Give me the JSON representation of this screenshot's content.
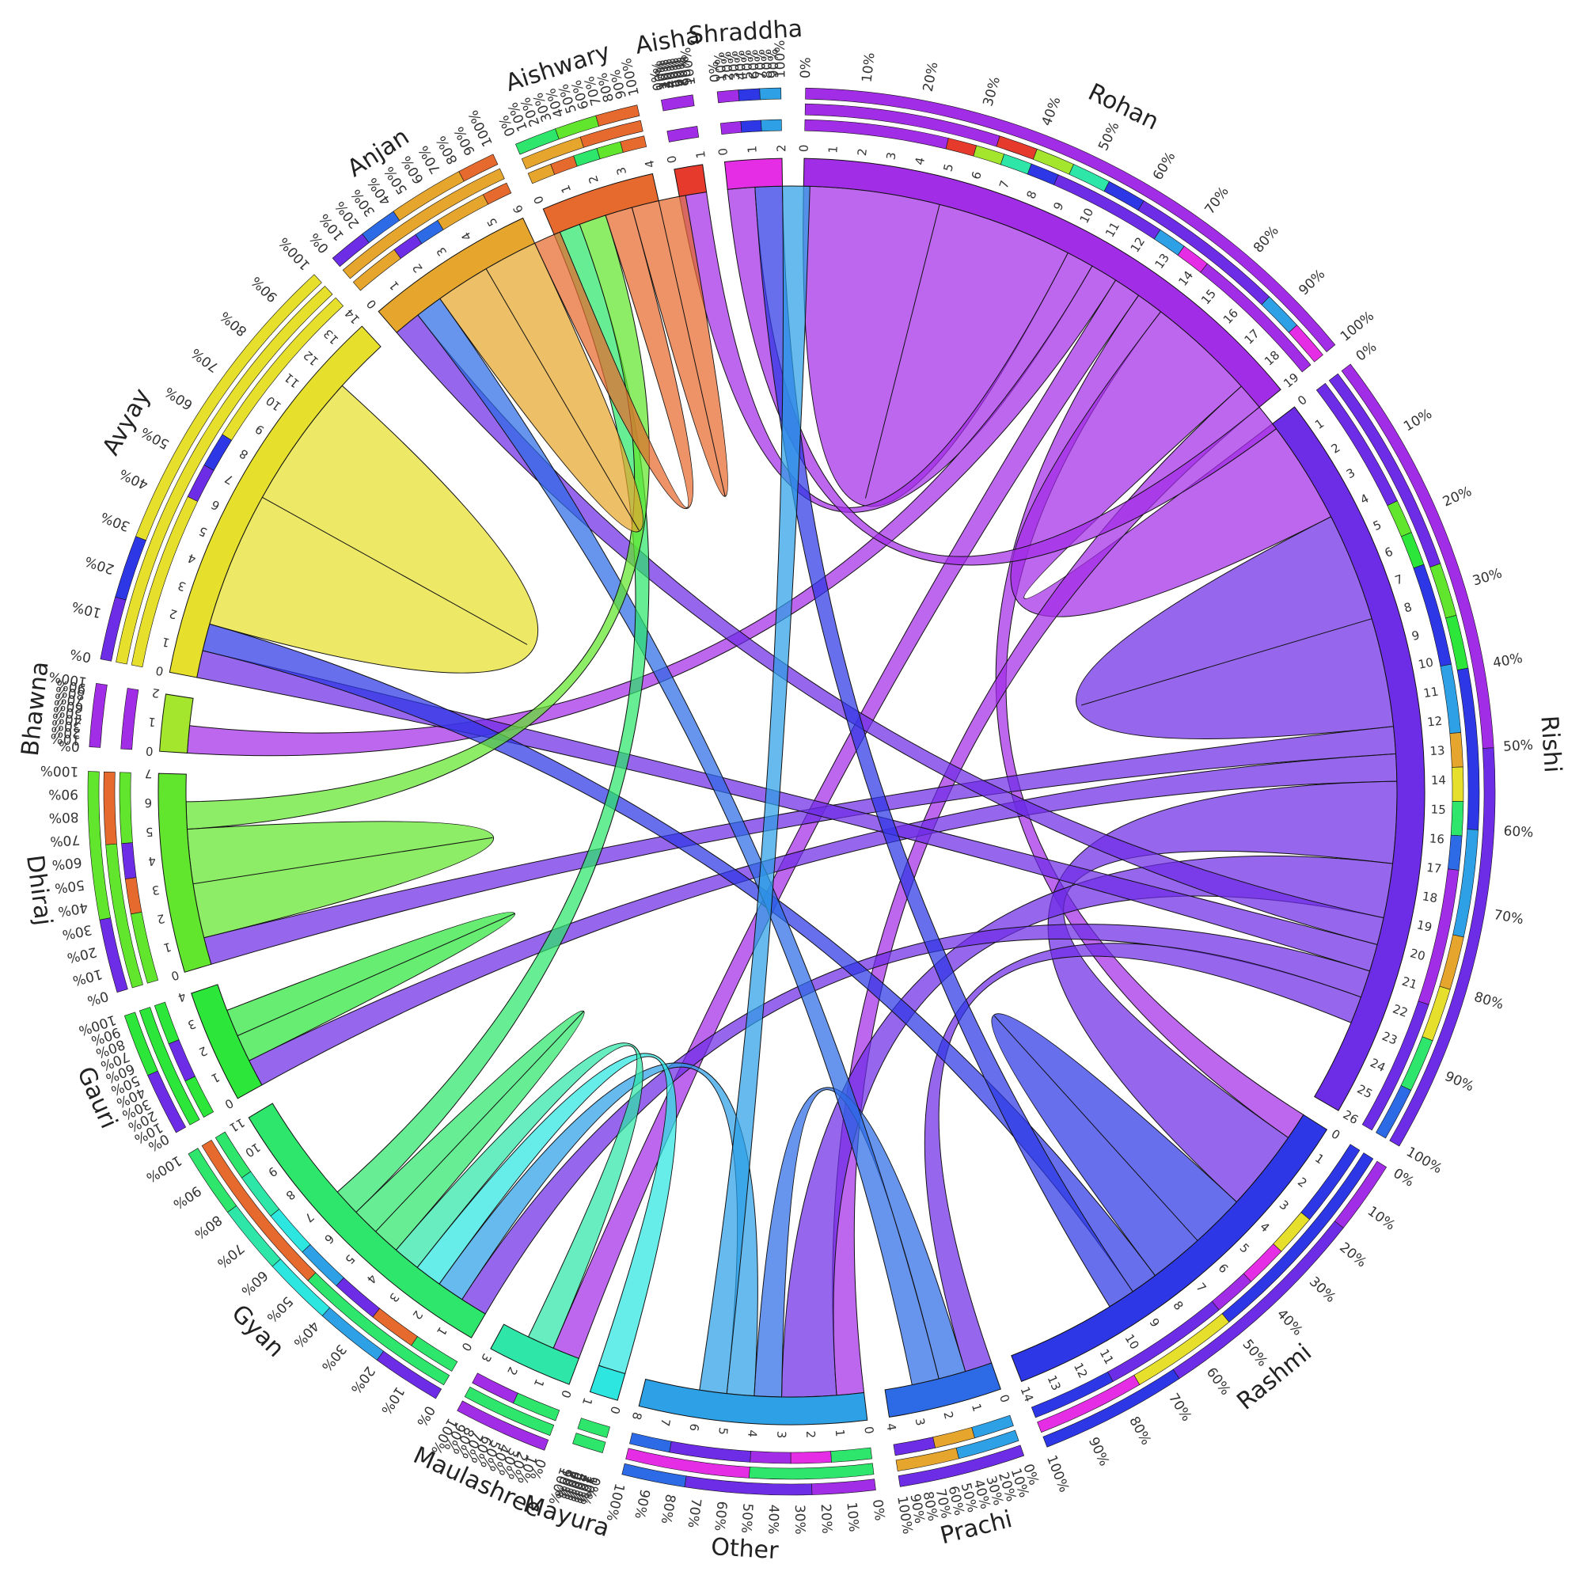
{
  "chart_data": {
    "type": "chord",
    "nodes": [
      {
        "name": "Rohan",
        "total": 19,
        "color": "#a22de6"
      },
      {
        "name": "Rishi",
        "total": 26,
        "color": "#6d2de6"
      },
      {
        "name": "Rashmi",
        "total": 14,
        "color": "#2d37e6"
      },
      {
        "name": "Prachi",
        "total": 4,
        "color": "#2d6be6"
      },
      {
        "name": "Other",
        "total": 8,
        "color": "#2da0e6"
      },
      {
        "name": "Mayura",
        "total": 1,
        "color": "#2de6e0"
      },
      {
        "name": "Maulashree",
        "total": 3,
        "color": "#2de6a8"
      },
      {
        "name": "Gyan",
        "total": 11,
        "color": "#2de66b"
      },
      {
        "name": "Gauri",
        "total": 4,
        "color": "#2de63a"
      },
      {
        "name": "Dhiraj",
        "total": 7,
        "color": "#62e62d"
      },
      {
        "name": "Bhawna",
        "total": 2,
        "color": "#a3e62d"
      },
      {
        "name": "Avyay",
        "total": 14,
        "color": "#e6e02d"
      },
      {
        "name": "Anjan",
        "total": 6,
        "color": "#e6a62d"
      },
      {
        "name": "Aishwary",
        "total": 4,
        "color": "#e6692d"
      },
      {
        "name": "Aisha",
        "total": 1,
        "color": "#e63a2d"
      },
      {
        "name": "Shraddha",
        "total": 2,
        "color": "#e62de6"
      }
    ],
    "links": [
      {
        "source": "Rohan",
        "target": "Rohan",
        "value": 5
      },
      {
        "source": "Rohan",
        "target": "Aisha",
        "value": 1
      },
      {
        "source": "Rohan",
        "target": "Bhawna",
        "value": 1
      },
      {
        "source": "Rohan",
        "target": "Maulashree",
        "value": 1
      },
      {
        "source": "Rohan",
        "target": "Rashmi",
        "value": 1
      },
      {
        "source": "Rohan",
        "target": "Rishi",
        "value": 4
      },
      {
        "source": "Rohan",
        "target": "Other",
        "value": 1
      },
      {
        "source": "Rohan",
        "target": "Shraddha",
        "value": 1
      },
      {
        "source": "Rishi",
        "target": "Rishi",
        "value": 4
      },
      {
        "source": "Rishi",
        "target": "Dhiraj",
        "value": 1
      },
      {
        "source": "Rishi",
        "target": "Gauri",
        "value": 1
      },
      {
        "source": "Rishi",
        "target": "Rashmi",
        "value": 3
      },
      {
        "source": "Rishi",
        "target": "Other",
        "value": 2
      },
      {
        "source": "Rishi",
        "target": "Anjan",
        "value": 1
      },
      {
        "source": "Rishi",
        "target": "Avyay",
        "value": 1
      },
      {
        "source": "Rishi",
        "target": "Gyan",
        "value": 1
      },
      {
        "source": "Rishi",
        "target": "Prachi",
        "value": 1
      },
      {
        "source": "Rashmi",
        "target": "Rashmi",
        "value": 2
      },
      {
        "source": "Rashmi",
        "target": "Avyay",
        "value": 1
      },
      {
        "source": "Rashmi",
        "target": "Shraddha",
        "value": 1
      },
      {
        "source": "Prachi",
        "target": "Other",
        "value": 1
      },
      {
        "source": "Prachi",
        "target": "Anjan",
        "value": 1
      },
      {
        "source": "Other",
        "target": "Gyan",
        "value": 1
      },
      {
        "source": "Other",
        "target": "Shraddha",
        "value": 1
      },
      {
        "source": "Mayura",
        "target": "Gyan",
        "value": 1
      },
      {
        "source": "Maulashree",
        "target": "Gyan",
        "value": 1
      },
      {
        "source": "Gyan",
        "target": "Gyan",
        "value": 1
      },
      {
        "source": "Gyan",
        "target": "Aishwary",
        "value": 1
      },
      {
        "source": "Gauri",
        "target": "Gauri",
        "value": 1
      },
      {
        "source": "Dhiraj",
        "target": "Dhiraj",
        "value": 2
      },
      {
        "source": "Dhiraj",
        "target": "Aishwary",
        "value": 1
      },
      {
        "source": "Avyay",
        "target": "Avyay",
        "value": 5
      },
      {
        "source": "Anjan",
        "target": "Anjan",
        "value": 2
      },
      {
        "source": "Aishwary",
        "target": "Anjan",
        "value": 1
      },
      {
        "source": "Aishwary",
        "target": "Aishwary",
        "value": 1
      }
    ],
    "percent_ticks": [
      "0%",
      "10%",
      "20%",
      "30%",
      "40%",
      "50%",
      "60%",
      "70%",
      "80%",
      "90%",
      "100%"
    ]
  }
}
